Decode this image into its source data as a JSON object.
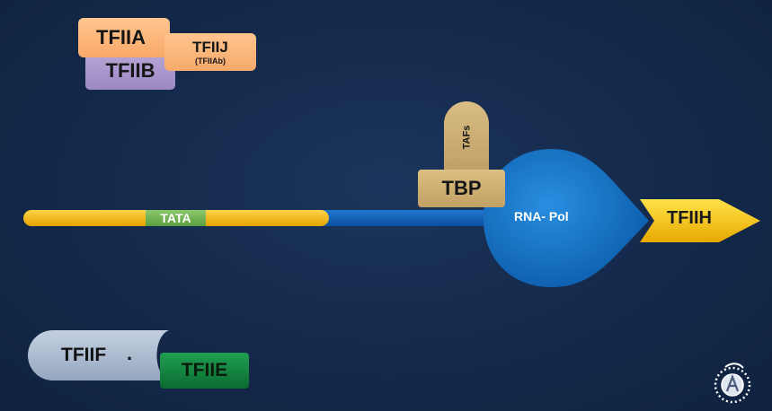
{
  "factors": {
    "tfiia": "TFIIA",
    "tfiib": "TFIIB",
    "tfiij": "TFIIJ",
    "tfiij_sub": "(TFIIAb)",
    "tafs": "TAFs",
    "tbp": "TBP",
    "tata": "TATA",
    "rna_pol": "RNA- Pol",
    "tfiih": "TFIIH",
    "tfiif": "TFIIF",
    "tfiif_dot": ".",
    "tfiie": "TFIIE"
  },
  "colors": {
    "background": "#14294a",
    "dna_promoter": "#f1b400",
    "dna_coding": "#1565c0",
    "rna_pol": "#1b78cc",
    "tfiih": "#f3c300",
    "tata": "#6eaf4d"
  },
  "logo": {
    "icon": "academy-emblem-icon"
  }
}
